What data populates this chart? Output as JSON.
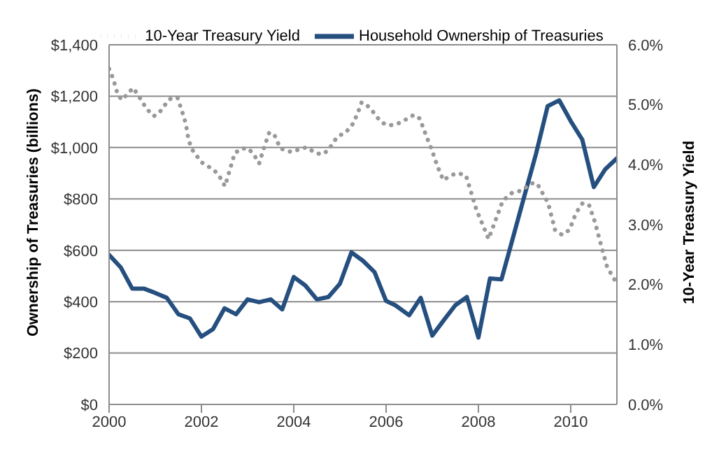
{
  "chart_data": {
    "type": "line",
    "ylabel": "Ownership of Treasuries (billions)",
    "y2label": "10-Year Treasury Yield",
    "xlim": [
      2000,
      2011
    ],
    "xticks": [
      2000,
      2002,
      2004,
      2006,
      2008,
      2010
    ],
    "ylim": [
      0,
      1400
    ],
    "yticks": [
      {
        "value": 0,
        "label": "$0"
      },
      {
        "value": 200,
        "label": "$200"
      },
      {
        "value": 400,
        "label": "$400"
      },
      {
        "value": 600,
        "label": "$600"
      },
      {
        "value": 800,
        "label": "$800"
      },
      {
        "value": 1000,
        "label": "$1,000"
      },
      {
        "value": 1200,
        "label": "$1,200"
      },
      {
        "value": 1400,
        "label": "$1,400"
      }
    ],
    "y2lim": [
      0,
      6
    ],
    "y2ticks": [
      {
        "value": 0,
        "label": "0.0%"
      },
      {
        "value": 1,
        "label": "1.0%"
      },
      {
        "value": 2,
        "label": "2.0%"
      },
      {
        "value": 3,
        "label": "3.0%"
      },
      {
        "value": 4,
        "label": "4.0%"
      },
      {
        "value": 5,
        "label": "5.0%"
      },
      {
        "value": 6,
        "label": "6.0%"
      }
    ],
    "grid": "y",
    "legend": "top",
    "marker": "none",
    "series": [
      {
        "name": "Household Ownership of Treasuries",
        "color": "#254f7f",
        "line_style": "solid",
        "x": [
          2000.0,
          2000.25,
          2000.5,
          2000.75,
          2001.0,
          2001.25,
          2001.5,
          2001.75,
          2002.0,
          2002.25,
          2002.5,
          2002.75,
          2003.0,
          2003.25,
          2003.5,
          2003.75,
          2004.0,
          2004.25,
          2004.5,
          2004.75,
          2005.0,
          2005.25,
          2005.5,
          2005.75,
          2006.0,
          2006.2,
          2006.5,
          2006.75,
          2007.0,
          2007.25,
          2007.5,
          2007.75,
          2008.0,
          2008.25,
          2008.5,
          2008.75,
          2009.0,
          2009.25,
          2009.5,
          2009.75,
          2010.0,
          2010.25,
          2010.5,
          2010.75,
          2011.0
        ],
        "values": [
          582,
          534,
          451,
          451,
          434,
          415,
          351,
          335,
          264,
          293,
          374,
          351,
          409,
          398,
          409,
          370,
          496,
          463,
          409,
          418,
          470,
          592,
          559,
          515,
          403,
          386,
          347,
          415,
          268,
          328,
          386,
          418,
          260,
          490,
          487,
          650,
          814,
          977,
          1161,
          1184,
          1103,
          1031,
          846,
          916,
          958
        ]
      },
      {
        "name": "10-Year Treasury Yield",
        "color": "#999999",
        "line_style": "dotted",
        "axis": "y2",
        "x": [
          2000.0,
          2000.09,
          2000.19,
          2000.28,
          2000.4,
          2000.52,
          2000.63,
          2000.73,
          2000.84,
          2000.97,
          2001.09,
          2001.19,
          2001.33,
          2001.48,
          2001.58,
          2001.66,
          2001.72,
          2001.79,
          2002.0,
          2002.15,
          2002.31,
          2002.41,
          2002.51,
          2002.61,
          2002.72,
          2002.87,
          2003.02,
          2003.15,
          2003.25,
          2003.35,
          2003.47,
          2003.59,
          2003.71,
          2003.95,
          2004.1,
          2004.28,
          2004.44,
          2004.59,
          2004.74,
          2004.88,
          2004.98,
          2005.13,
          2005.29,
          2005.41,
          2005.47,
          2005.6,
          2005.73,
          2005.85,
          2005.98,
          2006.13,
          2006.27,
          2006.47,
          2006.6,
          2006.73,
          2006.86,
          2006.98,
          2007.11,
          2007.24,
          2007.4,
          2007.55,
          2007.73,
          2007.83,
          2007.96,
          2008.12,
          2008.22,
          2008.37,
          2008.53,
          2008.73,
          2008.94,
          2009.15,
          2009.27,
          2009.51,
          2009.66,
          2009.81,
          2009.97,
          2010.12,
          2010.26,
          2010.4,
          2010.53,
          2010.67,
          2010.79,
          2010.95
        ],
        "values": [
          5.6,
          5.43,
          5.16,
          5.08,
          5.18,
          5.28,
          5.16,
          5.03,
          4.91,
          4.81,
          4.87,
          4.98,
          5.1,
          5.12,
          4.89,
          4.69,
          4.42,
          4.26,
          4.04,
          3.97,
          3.88,
          3.78,
          3.64,
          3.9,
          4.19,
          4.27,
          4.27,
          4.15,
          4.02,
          4.27,
          4.54,
          4.48,
          4.27,
          4.21,
          4.25,
          4.29,
          4.21,
          4.17,
          4.23,
          4.4,
          4.48,
          4.54,
          4.69,
          4.91,
          5.04,
          4.98,
          4.87,
          4.75,
          4.67,
          4.66,
          4.69,
          4.77,
          4.83,
          4.77,
          4.5,
          4.27,
          3.98,
          3.74,
          3.82,
          3.86,
          3.82,
          3.57,
          3.24,
          2.95,
          2.76,
          3.07,
          3.4,
          3.53,
          3.57,
          3.69,
          3.69,
          3.36,
          2.91,
          2.83,
          2.91,
          3.2,
          3.36,
          3.32,
          3.03,
          2.62,
          2.29,
          2.08
        ]
      }
    ]
  }
}
